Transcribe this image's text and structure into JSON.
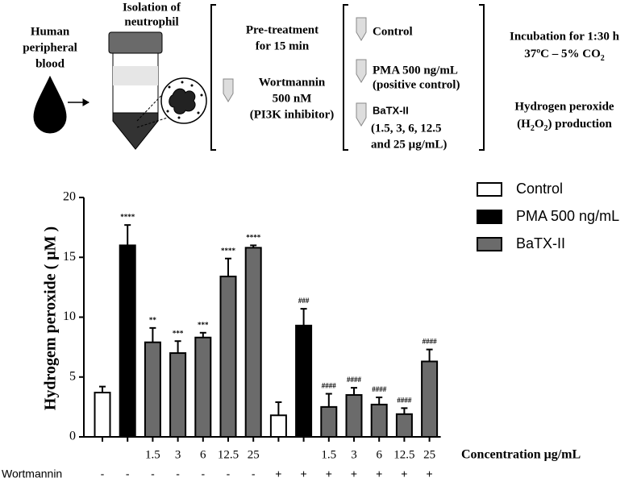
{
  "schematic": {
    "blood": [
      "Human",
      "peripheral",
      "blood"
    ],
    "isolation": [
      "Isolation of",
      "neutrophil"
    ],
    "pretreatment": [
      "Pre-treatment",
      "for 15 min"
    ],
    "wortmannin": [
      "Wortmannin",
      "500 nM",
      "(PI3K inhibitor)"
    ],
    "control": "Control",
    "pma": [
      "PMA 500 ng/mL",
      "(positive control)"
    ],
    "batx": [
      "BaTX-II",
      "(1.5, 3, 6, 12.5",
      "and 25 μg/mL)"
    ],
    "incubation": {
      "line1": "Incubation for 1:30 h",
      "line2": "37ºC – 5% CO",
      "line2_sub": "2"
    },
    "production": {
      "line1": "Hydrogen peroxide",
      "open": "(H",
      "sub1": "2",
      "mid": "O",
      "sub2": "2",
      "end": ") production"
    }
  },
  "chart_data": {
    "type": "bar",
    "ylabel": "Hydrogem peroxide ( μM )",
    "xlabel": "Concentration μg/mL",
    "categories": [
      null,
      null,
      "1.5",
      "3",
      "6",
      "12.5",
      "25",
      null,
      null,
      "1.5",
      "3",
      "6",
      "12.5",
      "25"
    ],
    "row_label": "Wortmannin",
    "row_values": [
      "-",
      "-",
      "-",
      "-",
      "-",
      "-",
      "-",
      "+",
      "+",
      "+",
      "+",
      "+",
      "+",
      "+"
    ],
    "annotations": [
      null,
      "****",
      "**",
      "***",
      "***",
      "****",
      "****",
      null,
      "###",
      "####",
      "####",
      "####",
      "####",
      "####"
    ],
    "ylim": [
      0,
      20
    ],
    "yticks": [
      0,
      5,
      10,
      15,
      20
    ],
    "series": [
      {
        "name": "Control",
        "color": "#ffffff",
        "values": [
          3.7,
          null,
          null,
          null,
          null,
          null,
          null,
          1.8,
          null,
          null,
          null,
          null,
          null,
          null
        ],
        "errors": [
          0.5,
          null,
          null,
          null,
          null,
          null,
          null,
          1.1,
          null,
          null,
          null,
          null,
          null,
          null
        ]
      },
      {
        "name": "PMA 500 ng/mL",
        "color": "#000000",
        "values": [
          null,
          16.0,
          null,
          null,
          null,
          null,
          null,
          null,
          9.3,
          null,
          null,
          null,
          null,
          null
        ],
        "errors": [
          null,
          1.7,
          null,
          null,
          null,
          null,
          null,
          null,
          1.4,
          null,
          null,
          null,
          null,
          null
        ]
      },
      {
        "name": "BaTX-II",
        "color": "#6b6b6b",
        "values": [
          null,
          null,
          7.9,
          7.0,
          8.3,
          13.4,
          15.8,
          null,
          null,
          2.5,
          3.5,
          2.7,
          1.9,
          6.3
        ],
        "errors": [
          null,
          null,
          1.2,
          1.0,
          0.4,
          1.5,
          0.2,
          null,
          null,
          1.1,
          0.6,
          0.6,
          0.5,
          1.0
        ]
      }
    ],
    "legend": "top-right"
  }
}
